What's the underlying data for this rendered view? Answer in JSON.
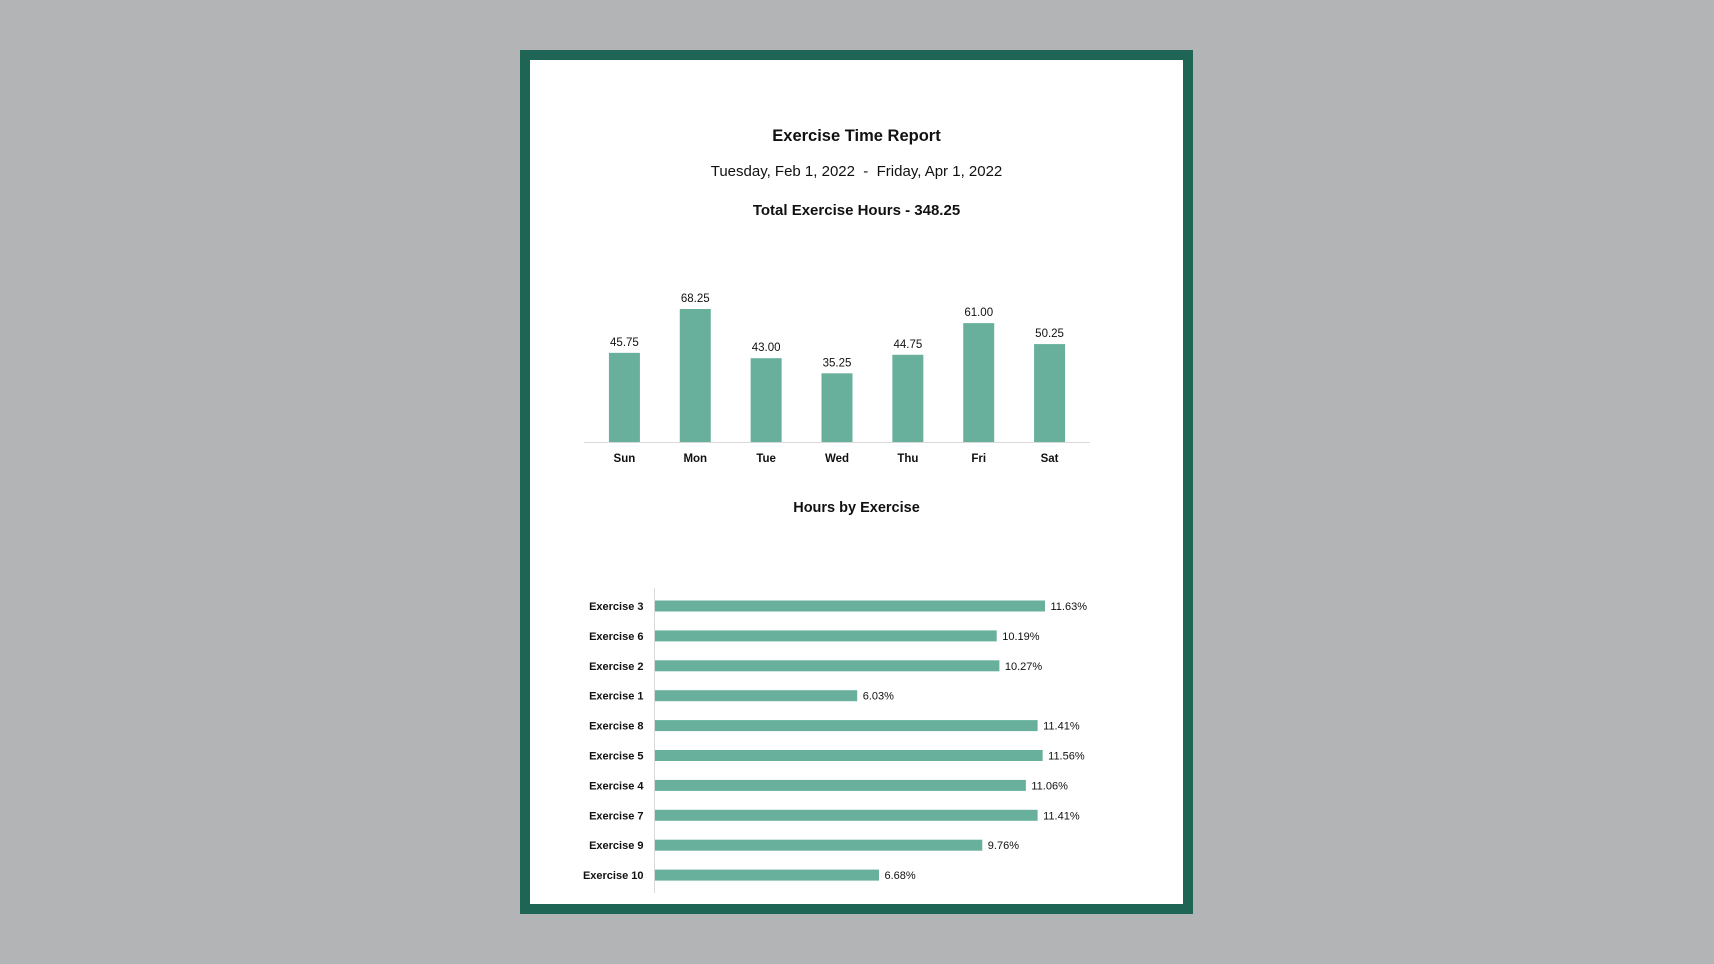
{
  "report": {
    "title": "Exercise Time Report",
    "date_range": "Tuesday, Feb 1, 2022  -  Friday, Apr 1, 2022",
    "total_label": "Total Exercise Hours - ",
    "total_value": "348.25"
  },
  "colors": {
    "frame": "#1e6556",
    "bar": "#68b09c",
    "background": "#b2b4b5"
  },
  "chart_data": [
    {
      "type": "bar",
      "title": "",
      "categories": [
        "Sun",
        "Mon",
        "Tue",
        "Wed",
        "Thu",
        "Fri",
        "Sat"
      ],
      "values": [
        45.75,
        68.25,
        43.0,
        35.25,
        44.75,
        61.0,
        50.25
      ],
      "data_labels": [
        "45.75",
        "68.25",
        "43.00",
        "35.25",
        "44.75",
        "61.00",
        "50.25"
      ],
      "ylim": [
        0,
        68.25
      ],
      "grid": false,
      "legend": "none"
    },
    {
      "type": "bar",
      "orientation": "horizontal",
      "title": "Hours by Exercise",
      "categories": [
        "Exercise 3",
        "Exercise 6",
        "Exercise 2",
        "Exercise 1",
        "Exercise 8",
        "Exercise 5",
        "Exercise 4",
        "Exercise 7",
        "Exercise 9",
        "Exercise 10"
      ],
      "values": [
        11.63,
        10.19,
        10.27,
        6.03,
        11.41,
        11.56,
        11.06,
        11.41,
        9.76,
        6.68
      ],
      "data_labels": [
        "11.63%",
        "10.19%",
        "10.27%",
        "6.03%",
        "11.41%",
        "11.56%",
        "11.06%",
        "11.41%",
        "9.76%",
        "6.68%"
      ],
      "xlim": [
        0,
        11.63
      ],
      "grid": false,
      "legend": "none"
    }
  ]
}
